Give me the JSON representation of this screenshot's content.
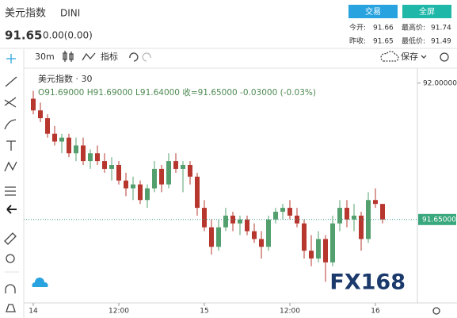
{
  "header": {
    "title": "美元指数",
    "code": "DINI",
    "price": 91.65,
    "change": "0.00(0.00)",
    "buttons": [
      "交易",
      "全屏"
    ],
    "stats": [
      {
        "label": "今开:",
        "value": 91.66
      },
      {
        "label": "最高价:",
        "value": 91.74
      },
      {
        "label": "昨收:",
        "value": 91.65
      },
      {
        "label": "最低价:",
        "value": 91.49
      }
    ]
  },
  "toolbar": {
    "interval": "30m",
    "indicators": "指标",
    "save": "保存"
  },
  "chart_data": {
    "type": "candlestick",
    "legend_title": "美元指数 · 30",
    "ohlc_text": "O91.69000 H91.69000 L91.64000 收=91.65000 -0.03000 (-0.03%)",
    "up_color": "#53a06e",
    "down_color": "#b7372f",
    "open": [
      91.96,
      91.93,
      91.91,
      91.87,
      91.85,
      91.86,
      91.82,
      91.84,
      91.8,
      91.82,
      91.8,
      91.78,
      91.79,
      91.75,
      91.73,
      91.74,
      91.7,
      91.73,
      91.78,
      91.74,
      91.8,
      91.78,
      91.79,
      91.76,
      91.68,
      91.63,
      91.58,
      91.63,
      91.66,
      91.64,
      91.65,
      91.62,
      91.6,
      91.58,
      91.65,
      91.67,
      91.68,
      91.66,
      91.64,
      91.57,
      91.55,
      91.6,
      91.54,
      91.64,
      91.68,
      91.65,
      91.66,
      91.6,
      91.7,
      91.69
    ],
    "high": [
      91.98,
      91.95,
      91.92,
      91.89,
      91.87,
      91.87,
      91.86,
      91.86,
      91.83,
      91.84,
      91.82,
      91.81,
      91.8,
      91.77,
      91.76,
      91.75,
      91.74,
      91.8,
      91.79,
      91.82,
      91.82,
      91.8,
      91.8,
      91.77,
      91.7,
      91.65,
      91.65,
      91.68,
      91.67,
      91.66,
      91.66,
      91.64,
      91.62,
      91.66,
      91.68,
      91.69,
      91.7,
      91.68,
      91.65,
      91.61,
      91.62,
      91.61,
      91.66,
      91.7,
      91.7,
      91.69,
      91.67,
      91.72,
      91.73,
      91.69
    ],
    "low": [
      91.92,
      91.9,
      91.86,
      91.84,
      91.82,
      91.81,
      91.8,
      91.79,
      91.78,
      91.79,
      91.77,
      91.75,
      91.74,
      91.71,
      91.7,
      91.69,
      91.68,
      91.72,
      91.72,
      91.73,
      91.77,
      91.72,
      91.74,
      91.66,
      91.62,
      91.56,
      91.57,
      91.62,
      91.62,
      91.61,
      91.61,
      91.59,
      91.55,
      91.57,
      91.64,
      91.65,
      91.65,
      91.63,
      91.55,
      91.53,
      91.54,
      91.49,
      91.53,
      91.62,
      91.63,
      91.62,
      91.57,
      91.59,
      91.68,
      91.64
    ],
    "close": [
      91.93,
      91.91,
      91.87,
      91.85,
      91.86,
      91.82,
      91.84,
      91.8,
      91.82,
      91.8,
      91.78,
      91.79,
      91.75,
      91.73,
      91.74,
      91.7,
      91.73,
      91.78,
      91.74,
      91.8,
      91.78,
      91.79,
      91.76,
      91.68,
      91.63,
      91.58,
      91.63,
      91.66,
      91.64,
      91.65,
      91.62,
      91.6,
      91.58,
      91.65,
      91.67,
      91.68,
      91.66,
      91.64,
      91.57,
      91.55,
      91.6,
      91.54,
      91.64,
      91.68,
      91.65,
      91.66,
      91.6,
      91.7,
      91.69,
      91.65
    ],
    "ylim": [
      91.44,
      92.02
    ],
    "yticks": [
      {
        "value": 92,
        "label": "92.00000"
      }
    ],
    "last_price": {
      "value": 91.65,
      "label": "91.65000"
    },
    "xticks": [
      {
        "value": 0,
        "label": "14"
      },
      {
        "value": 12,
        "label": "12:00"
      },
      {
        "value": 24,
        "label": "15"
      },
      {
        "value": 36,
        "label": "12:00"
      },
      {
        "value": 48,
        "label": "16"
      }
    ],
    "grid": false,
    "watermark": "FX168"
  }
}
